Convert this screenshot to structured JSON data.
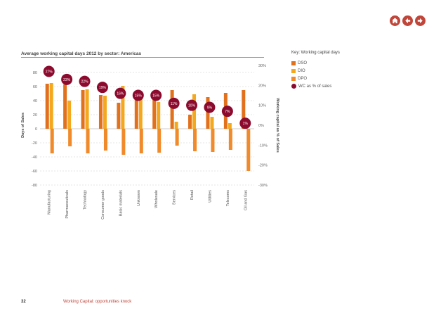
{
  "chart_data": {
    "type": "bar",
    "title": "Average working capital days 2012 by sector: Americas",
    "ylabel": "Days of Sales",
    "y2label": "Working capital as % of Sales",
    "ylim": [
      -80,
      90
    ],
    "y_ticks": [
      "80",
      "60",
      "40",
      "20",
      "0",
      "-20",
      "-40",
      "-60",
      "-80"
    ],
    "y2lim": [
      -30,
      30
    ],
    "y2_ticks": [
      "30%",
      "20%",
      "10%",
      "0%",
      "-10%",
      "-20%",
      "-30%"
    ],
    "categories": [
      "Manufacturing",
      "Pharmaceuticals",
      "Technology",
      "Consumer goods",
      "Basic materials",
      "Unknown",
      "Wholesale",
      "Services",
      "Retail",
      "Utilities",
      "Telecoms",
      "Oil and Gas"
    ],
    "series": [
      {
        "name": "DSO",
        "color": "#e2711d",
        "values": [
          64,
          63,
          55,
          48,
          37,
          48,
          47,
          55,
          20,
          45,
          51,
          55
        ]
      },
      {
        "name": "DIO",
        "color": "#f4a81d",
        "values": [
          65,
          40,
          56,
          47,
          61,
          46,
          38,
          10,
          49,
          17,
          8,
          0
        ]
      },
      {
        "name": "DPO",
        "color": "#f08a2b",
        "values": [
          -35,
          -25,
          -35,
          -31,
          -37,
          -35,
          -34,
          -24,
          -32,
          -33,
          -30,
          -60
        ]
      },
      {
        "name": "WC as % of sales",
        "color": "#8c0a2e",
        "values": [
          27,
          23,
          22,
          19,
          16,
          15,
          15,
          11,
          10,
          9,
          7,
          1
        ]
      }
    ],
    "point_labels": [
      "27%",
      "23%",
      "22%",
      "19%",
      "16%",
      "15%",
      "15%",
      "11%",
      "10%",
      "9%",
      "7%",
      "1%"
    ],
    "legend_title": "Key: Working capital days",
    "legend_position": "right",
    "grid": true
  },
  "nav": {
    "home_icon": "home-icon",
    "back_icon": "arrow-left-icon",
    "forward_icon": "arrow-right-icon",
    "color": "#c0463a"
  },
  "footer": {
    "page_number": "32",
    "text": "Working Capital: opportunities knock"
  }
}
